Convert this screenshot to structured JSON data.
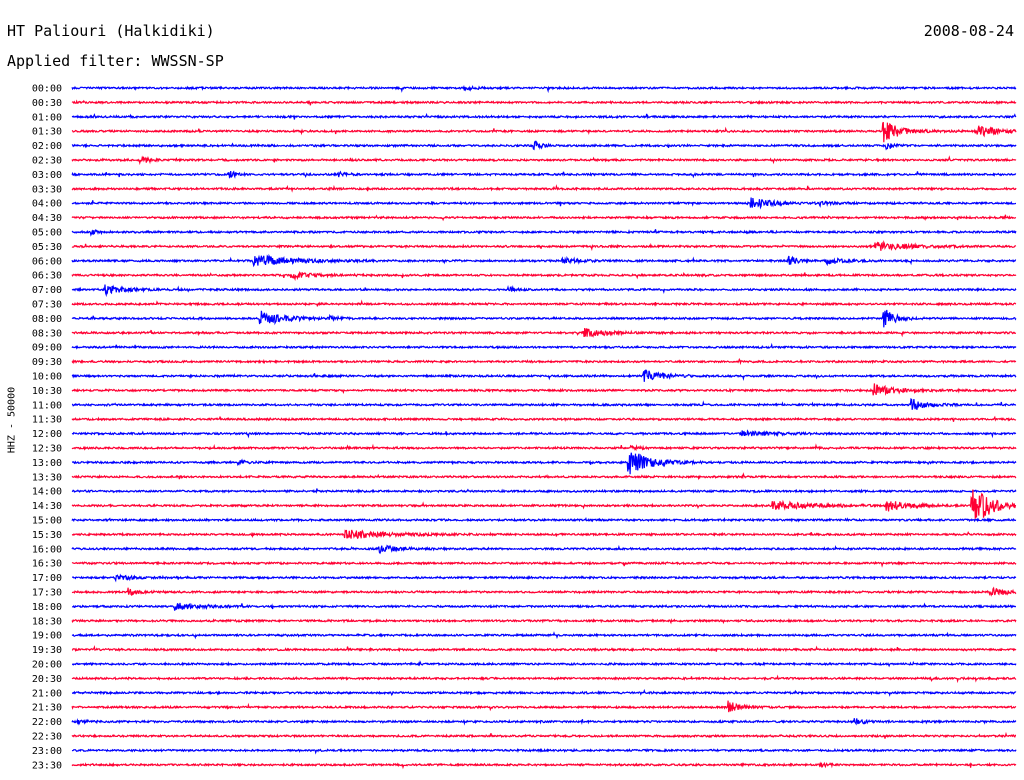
{
  "chart_data": {
    "type": "seismogram",
    "title": "HT Paliouri (Halkidiki)",
    "date": "2008-08-24",
    "subtitle": "Applied filter: WWSSN-SP",
    "ylabel": "HHZ - 50000",
    "row_labels": [
      "00:00",
      "00:30",
      "01:00",
      "01:30",
      "02:00",
      "02:30",
      "03:00",
      "03:30",
      "04:00",
      "04:30",
      "05:00",
      "05:30",
      "06:00",
      "06:30",
      "07:00",
      "07:30",
      "08:00",
      "08:30",
      "09:00",
      "09:30",
      "10:00",
      "10:30",
      "11:00",
      "11:30",
      "12:00",
      "12:30",
      "13:00",
      "13:30",
      "14:00",
      "14:30",
      "15:00",
      "15:30",
      "16:00",
      "16:30",
      "17:00",
      "17:30",
      "18:00",
      "18:30",
      "19:00",
      "19:30",
      "20:00",
      "20:30",
      "21:00",
      "21:30",
      "22:00",
      "22:30",
      "23:00",
      "23:30"
    ],
    "colors": {
      "even_rows": "#0000ff",
      "odd_rows": "#ff0033"
    },
    "x_range_min": [
      0,
      30
    ],
    "events": [
      {
        "row": 0,
        "t": 12.5,
        "amp": 0.3,
        "dur": 0.5
      },
      {
        "row": 3,
        "t": 25.8,
        "amp": 1.8,
        "dur": 1.0
      },
      {
        "row": 3,
        "t": 28.8,
        "amp": 0.9,
        "dur": 1.2
      },
      {
        "row": 4,
        "t": 14.7,
        "amp": 0.7,
        "dur": 0.3
      },
      {
        "row": 4,
        "t": 25.9,
        "amp": 0.6,
        "dur": 0.3
      },
      {
        "row": 5,
        "t": 2.2,
        "amp": 0.8,
        "dur": 0.3
      },
      {
        "row": 6,
        "t": 5.0,
        "amp": 0.6,
        "dur": 0.3
      },
      {
        "row": 6,
        "t": 8.5,
        "amp": 0.4,
        "dur": 0.3
      },
      {
        "row": 8,
        "t": 21.6,
        "amp": 0.9,
        "dur": 1.2
      },
      {
        "row": 8,
        "t": 23.8,
        "amp": 0.3,
        "dur": 0.6
      },
      {
        "row": 10,
        "t": 0.6,
        "amp": 0.4,
        "dur": 0.3
      },
      {
        "row": 11,
        "t": 25.5,
        "amp": 0.8,
        "dur": 2.0
      },
      {
        "row": 12,
        "t": 5.8,
        "amp": 1.0,
        "dur": 2.2
      },
      {
        "row": 12,
        "t": 15.6,
        "amp": 0.4,
        "dur": 1.2
      },
      {
        "row": 12,
        "t": 22.8,
        "amp": 0.8,
        "dur": 0.4
      },
      {
        "row": 12,
        "t": 24.0,
        "amp": 0.6,
        "dur": 0.8
      },
      {
        "row": 13,
        "t": 7.0,
        "amp": 0.6,
        "dur": 1.2
      },
      {
        "row": 14,
        "t": 1.1,
        "amp": 0.8,
        "dur": 1.0
      },
      {
        "row": 14,
        "t": 13.9,
        "amp": 0.4,
        "dur": 0.3
      },
      {
        "row": 16,
        "t": 6.0,
        "amp": 1.2,
        "dur": 1.4
      },
      {
        "row": 16,
        "t": 8.2,
        "amp": 0.3,
        "dur": 0.3
      },
      {
        "row": 16,
        "t": 25.8,
        "amp": 1.8,
        "dur": 0.6
      },
      {
        "row": 17,
        "t": 16.3,
        "amp": 0.7,
        "dur": 1.2
      },
      {
        "row": 20,
        "t": 18.2,
        "amp": 0.9,
        "dur": 1.2
      },
      {
        "row": 21,
        "t": 25.5,
        "amp": 1.0,
        "dur": 1.2
      },
      {
        "row": 22,
        "t": 26.7,
        "amp": 1.0,
        "dur": 0.8
      },
      {
        "row": 24,
        "t": 21.3,
        "amp": 0.4,
        "dur": 2.0
      },
      {
        "row": 25,
        "t": 17.8,
        "amp": 0.3,
        "dur": 0.3
      },
      {
        "row": 26,
        "t": 5.3,
        "amp": 0.4,
        "dur": 0.6
      },
      {
        "row": 26,
        "t": 17.7,
        "amp": 2.2,
        "dur": 1.2
      },
      {
        "row": 29,
        "t": 22.3,
        "amp": 0.7,
        "dur": 2.2
      },
      {
        "row": 29,
        "t": 25.9,
        "amp": 0.9,
        "dur": 1.2
      },
      {
        "row": 29,
        "t": 28.6,
        "amp": 4.0,
        "dur": 1.0
      },
      {
        "row": 31,
        "t": 8.7,
        "amp": 0.8,
        "dur": 2.2
      },
      {
        "row": 32,
        "t": 9.8,
        "amp": 0.6,
        "dur": 1.0
      },
      {
        "row": 34,
        "t": 1.4,
        "amp": 0.4,
        "dur": 1.0
      },
      {
        "row": 35,
        "t": 1.8,
        "amp": 0.6,
        "dur": 0.6
      },
      {
        "row": 35,
        "t": 29.2,
        "amp": 0.6,
        "dur": 1.4
      },
      {
        "row": 36,
        "t": 3.3,
        "amp": 0.6,
        "dur": 1.4
      },
      {
        "row": 43,
        "t": 20.9,
        "amp": 1.0,
        "dur": 0.6
      },
      {
        "row": 44,
        "t": 0.2,
        "amp": 0.5,
        "dur": 0.3
      },
      {
        "row": 44,
        "t": 24.9,
        "amp": 0.5,
        "dur": 0.6
      },
      {
        "row": 47,
        "t": 23.8,
        "amp": 0.3,
        "dur": 0.3
      }
    ]
  }
}
